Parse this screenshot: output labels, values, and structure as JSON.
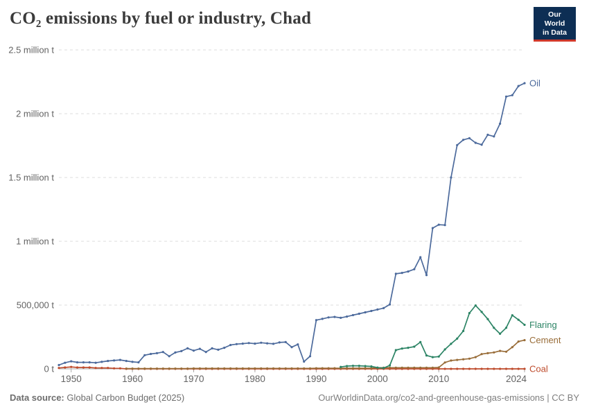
{
  "header": {
    "title": "CO₂ emissions by fuel or industry, Chad",
    "logo": {
      "line1": "Our World",
      "line2": "in Data"
    }
  },
  "footer": {
    "source_label": "Data source:",
    "source_value": "Global Carbon Budget (2025)",
    "credit": "OurWorldinData.org/co2-and-greenhouse-gas-emissions | CC BY"
  },
  "colors": {
    "oil": "#4c6a9c",
    "flaring": "#2c8465",
    "cement": "#996d39",
    "coal": "#be4b2c",
    "grid": "#dedede",
    "axis": "#a8a8a8",
    "tick_text": "#636363",
    "logo_bg": "#0d2e54",
    "logo_stripe": "#d0392b"
  },
  "chart_data": {
    "type": "line",
    "title": "CO₂ emissions by fuel or industry, Chad",
    "xlabel": "",
    "ylabel": "",
    "xlim": [
      1948,
      2024
    ],
    "ylim": [
      0,
      2500000
    ],
    "grid": "horizontal-dashed",
    "legend": "end-of-line-labels",
    "yticks": [
      {
        "value": 0,
        "label": "0 t"
      },
      {
        "value": 500000,
        "label": "500,000 t"
      },
      {
        "value": 1000000,
        "label": "1 million t"
      },
      {
        "value": 1500000,
        "label": "1.5 million t"
      },
      {
        "value": 2000000,
        "label": "2 million t"
      },
      {
        "value": 2500000,
        "label": "2.5 million t"
      }
    ],
    "xticks": [
      1950,
      1960,
      1970,
      1980,
      1990,
      2000,
      2010,
      2024
    ],
    "x": [
      1948,
      1949,
      1950,
      1951,
      1952,
      1953,
      1954,
      1955,
      1956,
      1957,
      1958,
      1959,
      1960,
      1961,
      1962,
      1963,
      1964,
      1965,
      1966,
      1967,
      1968,
      1969,
      1970,
      1971,
      1972,
      1973,
      1974,
      1975,
      1976,
      1977,
      1978,
      1979,
      1980,
      1981,
      1982,
      1983,
      1984,
      1985,
      1986,
      1987,
      1988,
      1989,
      1990,
      1991,
      1992,
      1993,
      1994,
      1995,
      1996,
      1997,
      1998,
      1999,
      2000,
      2001,
      2002,
      2003,
      2004,
      2005,
      2006,
      2007,
      2008,
      2009,
      2010,
      2011,
      2012,
      2013,
      2014,
      2015,
      2016,
      2017,
      2018,
      2019,
      2020,
      2021,
      2022,
      2023,
      2024
    ],
    "series": [
      {
        "name": "Oil",
        "color": "#4c6a9c",
        "values": [
          30000,
          48000,
          59000,
          51000,
          51000,
          51000,
          48000,
          55000,
          62000,
          66000,
          70000,
          62000,
          55000,
          51000,
          107000,
          117000,
          123000,
          132000,
          99000,
          128000,
          139000,
          161000,
          143000,
          157000,
          132000,
          161000,
          150000,
          165000,
          187000,
          194000,
          198000,
          202000,
          198000,
          205000,
          200000,
          196000,
          207000,
          210000,
          170000,
          192000,
          57000,
          99000,
          382000,
          392000,
          403000,
          407000,
          400000,
          410000,
          421000,
          432000,
          443000,
          454000,
          465000,
          476000,
          505000,
          745000,
          752000,
          763000,
          781000,
          875000,
          735000,
          1103000,
          1130000,
          1127000,
          1500000,
          1754000,
          1795000,
          1808000,
          1772000,
          1757000,
          1835000,
          1822000,
          1922000,
          2134000,
          2145000,
          2217000,
          2239000
        ]
      },
      {
        "name": "Flaring",
        "color": "#2c8465",
        "values": [
          null,
          null,
          null,
          null,
          null,
          null,
          null,
          null,
          null,
          null,
          null,
          null,
          null,
          null,
          null,
          null,
          null,
          null,
          null,
          null,
          null,
          null,
          null,
          null,
          null,
          null,
          null,
          null,
          null,
          null,
          null,
          null,
          null,
          null,
          null,
          null,
          null,
          null,
          null,
          null,
          null,
          null,
          null,
          null,
          null,
          null,
          15000,
          22000,
          24000,
          24000,
          22000,
          19000,
          10000,
          6000,
          27000,
          147000,
          159000,
          165000,
          174000,
          210000,
          105000,
          92000,
          96000,
          152000,
          196000,
          237000,
          297000,
          437000,
          497000,
          446000,
          390000,
          322000,
          275000,
          322000,
          420000,
          385000,
          345000
        ]
      },
      {
        "name": "Cement",
        "color": "#996d39",
        "values": [
          null,
          null,
          null,
          null,
          null,
          null,
          null,
          null,
          null,
          null,
          null,
          2000,
          2000,
          2000,
          2000,
          2000,
          2000,
          2000,
          2000,
          2000,
          2000,
          2000,
          3000,
          3000,
          3000,
          3000,
          3000,
          3000,
          3000,
          3000,
          3000,
          3000,
          4000,
          4000,
          4000,
          4000,
          4000,
          4000,
          4000,
          4000,
          4000,
          4000,
          5000,
          5000,
          5000,
          5000,
          5000,
          5000,
          5000,
          5000,
          5000,
          5000,
          9000,
          9000,
          9000,
          9000,
          9000,
          9000,
          9000,
          9000,
          9000,
          9000,
          11000,
          50000,
          65000,
          70000,
          75000,
          80000,
          92000,
          116000,
          123000,
          129000,
          141000,
          134000,
          170000,
          214000,
          225000
        ]
      },
      {
        "name": "Coal",
        "color": "#be4b2c",
        "values": [
          7000,
          11000,
          15000,
          11000,
          11000,
          11000,
          7000,
          7000,
          7000,
          4000,
          4000,
          0,
          0,
          0,
          0,
          0,
          0,
          0,
          0,
          0,
          0,
          0,
          0,
          0,
          0,
          0,
          0,
          0,
          0,
          0,
          0,
          0,
          0,
          0,
          0,
          0,
          0,
          0,
          0,
          0,
          0,
          0,
          0,
          0,
          0,
          0,
          0,
          0,
          0,
          0,
          0,
          0,
          0,
          0,
          0,
          0,
          0,
          0,
          0,
          0,
          0,
          0,
          0,
          0,
          0,
          0,
          0,
          0,
          0,
          0,
          0,
          0,
          0,
          0,
          0,
          0,
          0
        ]
      }
    ]
  }
}
